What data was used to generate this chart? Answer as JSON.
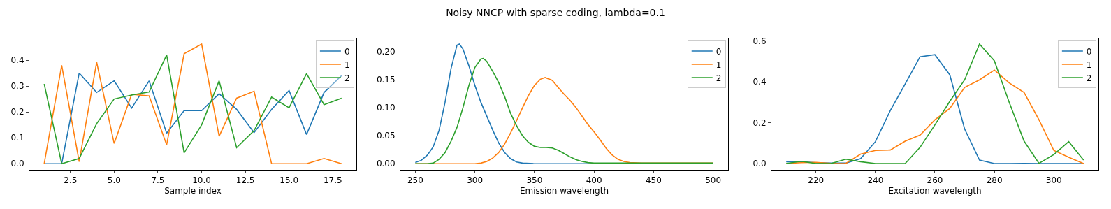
{
  "chart_data": [
    {
      "type": "line",
      "xlabel": "Sample index",
      "x": [
        1,
        2,
        3,
        4,
        5,
        6,
        7,
        8,
        9,
        10,
        11,
        12,
        13,
        14,
        15,
        16,
        17,
        18
      ],
      "series": [
        {
          "name": "0",
          "color": "#1f77b4",
          "values": [
            0,
            0,
            0.35,
            0.275,
            0.32,
            0.215,
            0.32,
            0.118,
            0.205,
            0.205,
            0.27,
            0.21,
            0.12,
            0.21,
            0.283,
            0.113,
            0.275,
            0.34
          ]
        },
        {
          "name": "1",
          "color": "#ff7f0e",
          "values": [
            0,
            0.38,
            0.008,
            0.392,
            0.078,
            0.268,
            0.262,
            0.073,
            0.425,
            0.462,
            0.106,
            0.253,
            0.28,
            0,
            0,
            0,
            0.02,
            0
          ]
        },
        {
          "name": "2",
          "color": "#2ca02c",
          "values": [
            0.308,
            0,
            0.02,
            0.155,
            0.25,
            0.265,
            0.277,
            0.42,
            0.042,
            0.15,
            0.32,
            0.062,
            0.128,
            0.257,
            0.216,
            0.348,
            0.228,
            0.253
          ]
        }
      ],
      "xlim": [
        0.15,
        18.85
      ],
      "ylim": [
        -0.023,
        0.485
      ],
      "xticks": [
        {
          "value": 2.5,
          "label": "2.5"
        },
        {
          "value": 5,
          "label": "5.0"
        },
        {
          "value": 7.5,
          "label": "7.5"
        },
        {
          "value": 10,
          "label": "10.0"
        },
        {
          "value": 12.5,
          "label": "12.5"
        },
        {
          "value": 15,
          "label": "15.0"
        },
        {
          "value": 17.5,
          "label": "17.5"
        }
      ],
      "yticks": [
        {
          "value": 0,
          "label": "0.0"
        },
        0.1,
        0.2,
        0.3,
        0.4
      ],
      "legend": "top right",
      "marker": "none",
      "line_style": "solid"
    },
    {
      "type": "line",
      "title": "Noisy NNCP with sparse coding, lambda=0.1",
      "xlabel": "Emission wavelength",
      "series": [
        {
          "name": "0",
          "color": "#1f77b4",
          "x": [
            250,
            255,
            260,
            265,
            270,
            275,
            280,
            285,
            287,
            290,
            295,
            300,
            305,
            310,
            315,
            320,
            325,
            330,
            335,
            340,
            350,
            400,
            450,
            500
          ],
          "values": [
            0.002,
            0.006,
            0.015,
            0.03,
            0.06,
            0.11,
            0.17,
            0.212,
            0.214,
            0.205,
            0.175,
            0.14,
            0.11,
            0.085,
            0.06,
            0.037,
            0.02,
            0.009,
            0.003,
            0.001,
            0,
            0,
            0,
            0
          ]
        },
        {
          "name": "1",
          "color": "#ff7f0e",
          "x": [
            250,
            260,
            270,
            280,
            290,
            300,
            305,
            310,
            315,
            320,
            325,
            330,
            335,
            340,
            345,
            350,
            355,
            359,
            365,
            370,
            375,
            380,
            385,
            390,
            395,
            400,
            405,
            410,
            415,
            420,
            425,
            430,
            440,
            500
          ],
          "values": [
            0,
            0,
            0,
            0,
            0,
            0,
            0.001,
            0.004,
            0.01,
            0.02,
            0.035,
            0.055,
            0.077,
            0.1,
            0.122,
            0.14,
            0.151,
            0.154,
            0.149,
            0.136,
            0.124,
            0.113,
            0.1,
            0.085,
            0.07,
            0.057,
            0.043,
            0.028,
            0.016,
            0.008,
            0.004,
            0.002,
            0.001,
            0.001
          ]
        },
        {
          "name": "2",
          "color": "#2ca02c",
          "x": [
            250,
            260,
            265,
            270,
            275,
            280,
            285,
            290,
            295,
            300,
            305,
            307,
            310,
            315,
            320,
            325,
            330,
            335,
            340,
            345,
            350,
            355,
            360,
            365,
            370,
            375,
            380,
            385,
            390,
            395,
            400,
            450,
            500
          ],
          "values": [
            0,
            0,
            0.001,
            0.008,
            0.02,
            0.04,
            0.065,
            0.1,
            0.14,
            0.172,
            0.187,
            0.188,
            0.183,
            0.165,
            0.145,
            0.12,
            0.09,
            0.068,
            0.05,
            0.038,
            0.031,
            0.029,
            0.029,
            0.028,
            0.024,
            0.018,
            0.012,
            0.007,
            0.004,
            0.002,
            0.001,
            0.001,
            0.001
          ]
        }
      ],
      "xlim": [
        237.5,
        512.5
      ],
      "ylim": [
        -0.0107,
        0.2245
      ],
      "xticks": [
        250,
        300,
        350,
        400,
        450,
        500
      ],
      "yticks": [
        {
          "value": 0,
          "label": "0.00"
        },
        0.05,
        {
          "value": 0.1,
          "label": "0.10"
        },
        0.15,
        {
          "value": 0.2,
          "label": "0.20"
        }
      ],
      "legend": "top right",
      "marker": "none",
      "line_style": "solid"
    },
    {
      "type": "line",
      "xlabel": "Excitation wavelength",
      "x": [
        210,
        215,
        220,
        225,
        230,
        235,
        240,
        245,
        250,
        255,
        260,
        265,
        270,
        275,
        280,
        285,
        290,
        295,
        300,
        305,
        310
      ],
      "series": [
        {
          "name": "0",
          "color": "#1f77b4",
          "values": [
            0.01,
            0.01,
            0.005,
            0.003,
            0.003,
            0.025,
            0.108,
            0.26,
            0.39,
            0.523,
            0.533,
            0.435,
            0.17,
            0.018,
            0.001,
            0.001,
            0.002,
            0.001,
            0.001,
            0.001,
            0.001
          ]
        },
        {
          "name": "1",
          "color": "#ff7f0e",
          "values": [
            0.001,
            0.005,
            0.007,
            0.002,
            0.001,
            0.047,
            0.065,
            0.067,
            0.11,
            0.14,
            0.215,
            0.27,
            0.373,
            0.41,
            0.458,
            0.395,
            0.348,
            0.215,
            0.065,
            0.032,
            0.001
          ]
        },
        {
          "name": "2",
          "color": "#2ca02c",
          "values": [
            0.001,
            0.012,
            0.001,
            0.001,
            0.022,
            0.01,
            0.001,
            0.001,
            0.001,
            0.08,
            0.19,
            0.305,
            0.41,
            0.585,
            0.503,
            0.3,
            0.11,
            0.002,
            0.045,
            0.108,
            0.018
          ]
        }
      ],
      "xlim": [
        205,
        315
      ],
      "ylim": [
        -0.029,
        0.614
      ],
      "xticks": [
        220,
        240,
        260,
        280,
        300
      ],
      "yticks": [
        {
          "value": 0,
          "label": "0.0"
        },
        0.2,
        0.4,
        0.6
      ],
      "legend": "top right",
      "marker": "none",
      "line_style": "solid"
    }
  ]
}
